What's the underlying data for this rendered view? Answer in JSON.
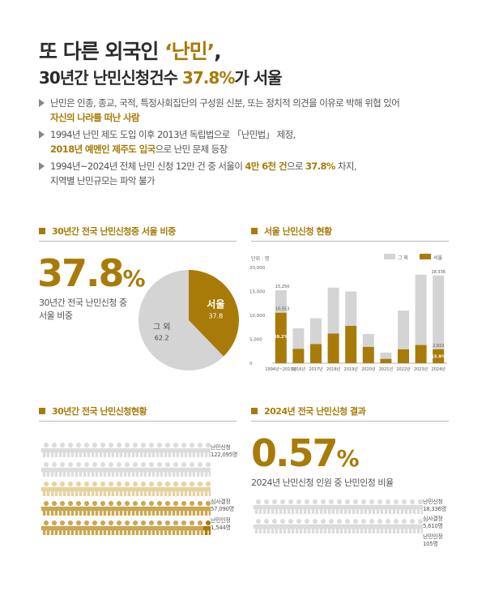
{
  "title": {
    "line1_pre": "또 다른 외국인 ",
    "line1_hl": "‘난민’",
    "line1_post": ",",
    "line2_pre": "30년간 난민신청건수 ",
    "line2_hl": "37.8%",
    "line2_post": "가 서울"
  },
  "bullets": [
    {
      "l1": "난민은 인종, 종교, 국적, 특정사회집단의 구성원 신분, 또는 정치적 의견을 이유로 박해 위협 있어",
      "l2_hl": "자신의 나라를 떠난 사람",
      "l2_post": ""
    },
    {
      "l1": "1994년 난민 제도 도입 이후 2013년 독립법으로 「난민법」 제정,",
      "l2_hl": "2018년 예멘인 제주도 입국",
      "l2_post": "으로 난민 문제 등장"
    },
    {
      "l1_pre": "1994년~2024년 전체 난민 신청 12만 건 중 서울이 ",
      "l1_hl": "4만 6천 건",
      "l1_post": "으로 ",
      "l1_hl2": "37.8%",
      "l1_post2": " 차지,",
      "l2": "지역별 난민규모는 파악 불가"
    }
  ],
  "section_pie": {
    "heading": "30년간 전국 난민신청중 서울 비중",
    "big_value": "37.8",
    "big_unit": "%",
    "desc_l1": "30년간 전국 난민신청 중",
    "desc_l2": "서울 비중"
  },
  "section_bar": {
    "heading": "서울 난민신청 현황",
    "unit": "단위 : 명",
    "legend_other": "그 외",
    "legend_seoul": "서울",
    "yticks": [
      "20,000",
      "15,000",
      "10,000",
      "5,000",
      "0"
    ],
    "label_first_total": "15,250",
    "label_first_seoul": "10,553",
    "label_first_pct": "69.2%",
    "label_last_total": "18,336",
    "label_last_seoul": "2,919",
    "label_last_pct": "15.9%"
  },
  "section_people_30y": {
    "heading": "30년간 전국 난민신청현황",
    "label_apply_1": "난민신청",
    "label_apply_2": "122,095명",
    "label_review_1": "심사결정",
    "label_review_2": "57,090명",
    "label_recog_1": "난민인정",
    "label_recog_2": "1,544명"
  },
  "section_people_2024": {
    "heading": "2024년 전국 난민신청 결과",
    "big_value": "0.57",
    "big_unit": "%",
    "desc": "2024년 난민신청 인원 중 난민인정 비율",
    "label_apply_1": "난민신청",
    "label_apply_2": "18,336명",
    "label_review_1": "심사결정",
    "label_review_2": "5,610명",
    "label_recog_1": "난민인정",
    "label_recog_2": "105명"
  },
  "colors": {
    "gold": "#a87b08",
    "gray": "#d4d4d4",
    "light_gold": "#e7d2a0"
  },
  "chart_data": [
    {
      "type": "pie",
      "title": "30년간 전국 난민신청중 서울 비중",
      "slices": [
        {
          "label": "서울",
          "value": 37.8
        },
        {
          "label": "그 외",
          "value": 62.2
        }
      ]
    },
    {
      "type": "bar",
      "title": "서울 난민신청 현황",
      "stacked": true,
      "ylim": [
        0,
        20000
      ],
      "categories": [
        "1994년~2015년",
        "2016년",
        "2017년",
        "2018년",
        "2019년",
        "2020년",
        "2021년",
        "2022년",
        "2023년",
        "2024년"
      ],
      "series": [
        {
          "name": "서울",
          "values": [
            10553,
            3000,
            4000,
            6200,
            7800,
            3400,
            900,
            2900,
            3800,
            2919
          ]
        },
        {
          "name": "그 외",
          "values": [
            4697,
            4300,
            5400,
            9600,
            7200,
            2700,
            1300,
            8100,
            14700,
            15417
          ]
        }
      ]
    }
  ]
}
